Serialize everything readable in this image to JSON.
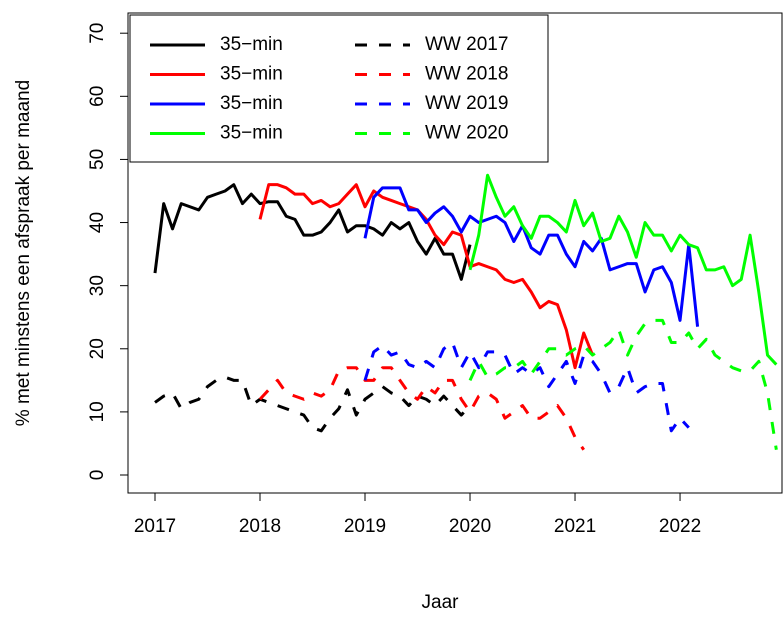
{
  "chart_data": {
    "type": "line",
    "x_label": "Jaar",
    "y_label": "% met minstens een afspraak per maand",
    "xlim": [
      2016.743,
      2022.971
    ],
    "ylim": [
      -2.85,
      73.2
    ],
    "xticks": [
      2017,
      2018,
      2019,
      2020,
      2021,
      2022
    ],
    "yticks": [
      0,
      10,
      20,
      30,
      40,
      50,
      60,
      70
    ],
    "legend": "top-left",
    "x": [
      2017,
      2017.083,
      2017.167,
      2017.25,
      2017.333,
      2017.417,
      2017.5,
      2017.583,
      2017.667,
      2017.75,
      2017.833,
      2017.917,
      2018,
      2018.083,
      2018.167,
      2018.25,
      2018.333,
      2018.417,
      2018.5,
      2018.583,
      2018.667,
      2018.75,
      2018.833,
      2018.917,
      2019,
      2019.083,
      2019.167,
      2019.25,
      2019.333,
      2019.417,
      2019.5,
      2019.583,
      2019.667,
      2019.75,
      2019.833,
      2019.917,
      2020,
      2020.083,
      2020.167,
      2020.25,
      2020.333,
      2020.417,
      2020.5,
      2020.583,
      2020.667,
      2020.75,
      2020.833,
      2020.917,
      2021,
      2021.083,
      2021.167,
      2021.25,
      2021.333,
      2021.417,
      2021.5,
      2021.583,
      2021.667,
      2021.75,
      2021.833,
      2021.917,
      2022,
      2022.083,
      2022.167,
      2022.25,
      2022.333,
      2022.417,
      2022.5,
      2022.583,
      2022.667,
      2022.75,
      2022.833,
      2022.917
    ],
    "series": [
      {
        "name": "35−min",
        "color": "#000000",
        "linestyle": "solid",
        "values": [
          32,
          43,
          39,
          43,
          42.5,
          42,
          44,
          44.5,
          45,
          46,
          43,
          44.5,
          43,
          43.3,
          43.3,
          41,
          40.5,
          38,
          38,
          38.5,
          40,
          42,
          38.5,
          39.5,
          39.5,
          39,
          38,
          40,
          39,
          40,
          37,
          35,
          37.5,
          35,
          35,
          31,
          36.5,
          null,
          null,
          null,
          null,
          null,
          null,
          null,
          null,
          null,
          null,
          null,
          null,
          null,
          null,
          null,
          null,
          null,
          null,
          null,
          null,
          null,
          null,
          null,
          null,
          null,
          null,
          null,
          null,
          null,
          null,
          null,
          null,
          null,
          null,
          null
        ]
      },
      {
        "name": "35−min",
        "color": "#ff0000",
        "linestyle": "solid",
        "values": [
          null,
          null,
          null,
          null,
          null,
          null,
          null,
          null,
          null,
          null,
          null,
          null,
          40.5,
          46,
          46,
          45.5,
          44.5,
          44.5,
          43,
          43.5,
          42.5,
          43,
          44.5,
          46,
          42.5,
          45,
          44,
          43.5,
          43,
          42.5,
          42,
          40.5,
          38,
          36.5,
          38.5,
          38,
          33,
          33.5,
          33,
          32.5,
          31,
          30.5,
          31,
          29,
          26.5,
          27.5,
          27,
          23,
          17,
          22.5,
          19,
          null,
          null,
          null,
          null,
          null,
          null,
          null,
          null,
          null,
          null,
          null,
          null,
          null,
          null,
          null,
          null,
          null,
          null,
          null,
          null,
          null
        ]
      },
      {
        "name": "35−min",
        "color": "#0000ff",
        "linestyle": "solid",
        "values": [
          null,
          null,
          null,
          null,
          null,
          null,
          null,
          null,
          null,
          null,
          null,
          null,
          null,
          null,
          null,
          null,
          null,
          null,
          null,
          null,
          null,
          null,
          null,
          null,
          37.5,
          44,
          45.5,
          45.5,
          45.5,
          42,
          42,
          40,
          41.5,
          42.5,
          41,
          38.5,
          41,
          40,
          40.5,
          41,
          40,
          37,
          39.5,
          36,
          35,
          38,
          38,
          35,
          33,
          37,
          35.5,
          37.5,
          32.5,
          33,
          33.5,
          33.5,
          29,
          32.5,
          33,
          30.5,
          24.5,
          36.5,
          23.5,
          null,
          null,
          null,
          null,
          null,
          null,
          null,
          null,
          null
        ]
      },
      {
        "name": "35−min",
        "color": "#00ff00",
        "linestyle": "solid",
        "values": [
          null,
          null,
          null,
          null,
          null,
          null,
          null,
          null,
          null,
          null,
          null,
          null,
          null,
          null,
          null,
          null,
          null,
          null,
          null,
          null,
          null,
          null,
          null,
          null,
          null,
          null,
          null,
          null,
          null,
          null,
          null,
          null,
          null,
          null,
          null,
          null,
          32.5,
          38,
          47.5,
          44,
          41,
          42.5,
          39.5,
          37.5,
          41,
          41,
          40,
          38.5,
          43.5,
          39.5,
          41.5,
          37,
          37.5,
          41,
          38.5,
          34.5,
          40,
          38,
          38,
          35.5,
          38,
          36.5,
          36,
          32.5,
          32.5,
          33,
          30,
          31,
          38,
          29,
          19,
          17.5
        ]
      },
      {
        "name": "WW 2017",
        "color": "#000000",
        "linestyle": "dashed",
        "values": [
          11.5,
          12.5,
          13,
          10.5,
          11.5,
          12,
          14,
          15,
          15.5,
          15,
          15,
          11,
          12,
          11.5,
          11,
          10.5,
          10,
          9.5,
          7.5,
          7,
          9,
          10.5,
          13.5,
          9.5,
          12,
          13,
          14,
          13,
          12.5,
          11,
          12.5,
          12,
          11,
          12.5,
          11,
          9.5,
          11,
          null,
          null,
          null,
          null,
          null,
          null,
          null,
          null,
          null,
          null,
          null,
          null,
          null,
          null,
          null,
          null,
          null,
          null,
          null,
          null,
          null,
          null,
          null,
          null,
          null,
          null,
          null,
          null,
          null,
          null,
          null,
          null,
          null,
          null,
          null
        ]
      },
      {
        "name": "WW 2018",
        "color": "#ff0000",
        "linestyle": "dashed",
        "values": [
          null,
          null,
          null,
          null,
          null,
          null,
          null,
          null,
          null,
          null,
          null,
          null,
          12,
          13.5,
          15,
          13,
          12.5,
          12,
          13,
          12.5,
          13.5,
          16.5,
          17,
          17,
          15,
          15,
          17,
          17,
          15,
          13,
          12,
          14,
          13,
          15,
          15,
          12,
          10,
          12.5,
          13,
          12,
          9,
          10,
          11,
          9,
          9,
          10,
          11,
          9,
          6,
          4,
          null,
          null,
          null,
          null,
          null,
          null,
          null,
          null,
          null,
          null,
          null,
          null,
          null,
          null,
          null,
          null,
          null,
          null,
          null,
          null,
          null,
          null
        ]
      },
      {
        "name": "WW 2019",
        "color": "#0000ff",
        "linestyle": "dashed",
        "values": [
          null,
          null,
          null,
          null,
          null,
          null,
          null,
          null,
          null,
          null,
          null,
          null,
          null,
          null,
          null,
          null,
          null,
          null,
          null,
          null,
          null,
          null,
          null,
          null,
          15,
          19.5,
          20.5,
          19,
          19.5,
          17.5,
          17,
          18,
          17,
          20,
          21,
          17,
          19.5,
          17,
          19.5,
          19.5,
          19,
          16,
          17,
          16,
          17,
          14,
          16,
          18,
          14.5,
          19,
          18,
          16,
          13,
          14,
          17,
          13,
          14,
          14.5,
          14.5,
          7,
          9,
          7.5,
          null,
          null,
          null,
          null,
          null,
          null,
          null,
          null,
          null,
          null
        ]
      },
      {
        "name": "WW 2020",
        "color": "#00ff00",
        "linestyle": "dashed",
        "values": [
          null,
          null,
          null,
          null,
          null,
          null,
          null,
          null,
          null,
          null,
          null,
          null,
          null,
          null,
          null,
          null,
          null,
          null,
          null,
          null,
          null,
          null,
          null,
          null,
          null,
          null,
          null,
          null,
          null,
          null,
          null,
          null,
          null,
          null,
          null,
          null,
          15,
          18,
          15.5,
          16,
          17,
          17,
          18,
          16,
          18,
          20,
          20,
          19,
          20,
          20.5,
          19,
          20,
          21,
          23,
          19,
          22,
          24,
          24.5,
          24.5,
          21,
          21,
          22.5,
          20,
          21.5,
          19,
          18,
          17,
          16.5,
          16.5,
          18,
          13,
          4
        ]
      }
    ]
  }
}
